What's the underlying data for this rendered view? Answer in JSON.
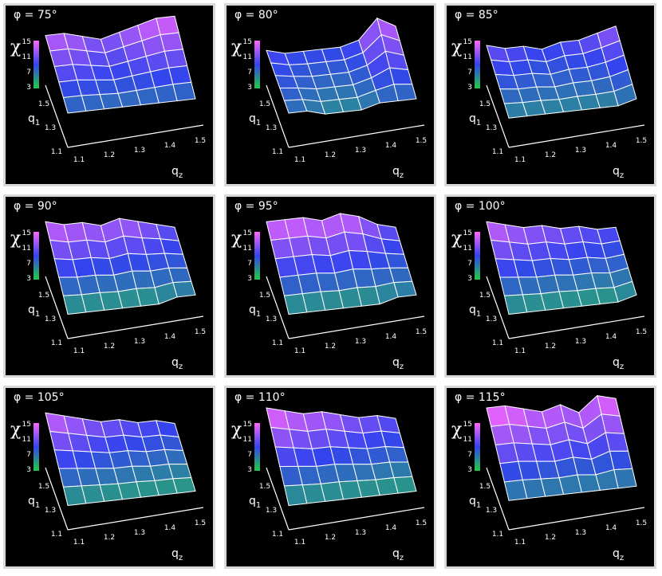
{
  "symbols": {
    "chi": "χ",
    "q1": "q",
    "q1_sub": "1",
    "qz": "q",
    "qz_sub": "z"
  },
  "colorbar": {
    "ticks": [
      "15",
      "11",
      "7",
      "3"
    ],
    "colors": [
      "#ff66ff",
      "#3344ee",
      "#22cc44"
    ]
  },
  "axis_ticks": {
    "qz": [
      "1.1",
      "1.2",
      "1.3",
      "1.4",
      "1.5"
    ],
    "q1": [
      "1.5",
      "1.3",
      "1.1"
    ]
  },
  "chart_data": [
    {
      "type": "surface",
      "title": "φ = 75°",
      "phi_deg": 75,
      "xlabel": "qz",
      "ylabel": "q1",
      "zlabel": "χ",
      "zlim": [
        3,
        15
      ],
      "xlim": [
        1.1,
        1.5
      ],
      "ylim": [
        1.1,
        1.5
      ],
      "z_back_edge": [
        13,
        13,
        12,
        11,
        12,
        13,
        14,
        14
      ],
      "z_front_edge": [
        7,
        7,
        7,
        7,
        7,
        7,
        7,
        7
      ]
    },
    {
      "type": "surface",
      "title": "φ = 80°",
      "phi_deg": 80,
      "xlabel": "qz",
      "ylabel": "q1",
      "zlabel": "χ",
      "zlim": [
        3,
        15
      ],
      "xlim": [
        1.1,
        1.5
      ],
      "ylim": [
        1.1,
        1.5
      ],
      "z_back_edge": [
        10,
        9,
        9,
        9,
        9,
        10,
        14,
        12
      ],
      "z_front_edge": [
        7,
        7,
        6,
        6,
        6,
        7,
        7,
        7
      ]
    },
    {
      "type": "surface",
      "title": "φ = 85°",
      "phi_deg": 85,
      "xlabel": "qz",
      "ylabel": "q1",
      "zlabel": "χ",
      "zlim": [
        3,
        15
      ],
      "xlim": [
        1.1,
        1.5
      ],
      "ylim": [
        1.1,
        1.5
      ],
      "z_back_edge": [
        11,
        10,
        10,
        9,
        10,
        10,
        11,
        12
      ],
      "z_front_edge": [
        6,
        6,
        6,
        6,
        6,
        6,
        6,
        7
      ]
    },
    {
      "type": "surface",
      "title": "φ = 90°",
      "phi_deg": 90,
      "xlabel": "qz",
      "ylabel": "q1",
      "zlabel": "χ",
      "zlim": [
        3,
        15
      ],
      "xlim": [
        1.1,
        1.5
      ],
      "ylim": [
        1.1,
        1.5
      ],
      "z_back_edge": [
        14,
        13,
        13,
        12,
        13,
        12,
        11,
        10
      ],
      "z_front_edge": [
        5,
        5,
        5,
        5,
        5,
        5,
        6,
        6
      ]
    },
    {
      "type": "surface",
      "title": "φ = 95°",
      "phi_deg": 95,
      "xlabel": "qz",
      "ylabel": "q1",
      "zlabel": "χ",
      "zlim": [
        3,
        15
      ],
      "xlim": [
        1.1,
        1.5
      ],
      "ylim": [
        1.1,
        1.5
      ],
      "z_back_edge": [
        14,
        14,
        14,
        13,
        14,
        13,
        11,
        10
      ],
      "z_front_edge": [
        5,
        5,
        5,
        5,
        5,
        5,
        6,
        6
      ]
    },
    {
      "type": "surface",
      "title": "φ = 100°",
      "phi_deg": 100,
      "xlabel": "qz",
      "ylabel": "q1",
      "zlabel": "χ",
      "zlim": [
        3,
        15
      ],
      "xlim": [
        1.1,
        1.5
      ],
      "ylim": [
        1.1,
        1.5
      ],
      "z_back_edge": [
        14,
        13,
        12,
        12,
        11,
        11,
        10,
        10
      ],
      "z_front_edge": [
        5,
        5,
        5,
        5,
        5,
        5,
        5,
        6
      ]
    },
    {
      "type": "surface",
      "title": "φ = 105°",
      "phi_deg": 105,
      "xlabel": "qz",
      "ylabel": "q1",
      "zlabel": "χ",
      "zlim": [
        3,
        15
      ],
      "xlim": [
        1.1,
        1.5
      ],
      "ylim": [
        1.1,
        1.5
      ],
      "z_back_edge": [
        14,
        13,
        12,
        11,
        11,
        10,
        10,
        9
      ],
      "z_front_edge": [
        5,
        5,
        5,
        5,
        5,
        5,
        5,
        5
      ]
    },
    {
      "type": "surface",
      "title": "φ = 110°",
      "phi_deg": 110,
      "xlabel": "qz",
      "ylabel": "q1",
      "zlabel": "χ",
      "zlim": [
        3,
        15
      ],
      "xlim": [
        1.1,
        1.5
      ],
      "ylim": [
        1.1,
        1.5
      ],
      "z_back_edge": [
        15,
        14,
        13,
        13,
        12,
        11,
        11,
        10
      ],
      "z_front_edge": [
        5,
        5,
        5,
        5,
        5,
        5,
        5,
        5
      ]
    },
    {
      "type": "surface",
      "title": "φ = 115°",
      "phi_deg": 115,
      "xlabel": "qz",
      "ylabel": "q1",
      "zlabel": "χ",
      "zlim": [
        3,
        15
      ],
      "xlim": [
        1.1,
        1.5
      ],
      "ylim": [
        1.1,
        1.5
      ],
      "z_back_edge": [
        15,
        15,
        14,
        13,
        14,
        12,
        15,
        14
      ],
      "z_front_edge": [
        6,
        6,
        6,
        6,
        6,
        6,
        6,
        6
      ]
    }
  ]
}
